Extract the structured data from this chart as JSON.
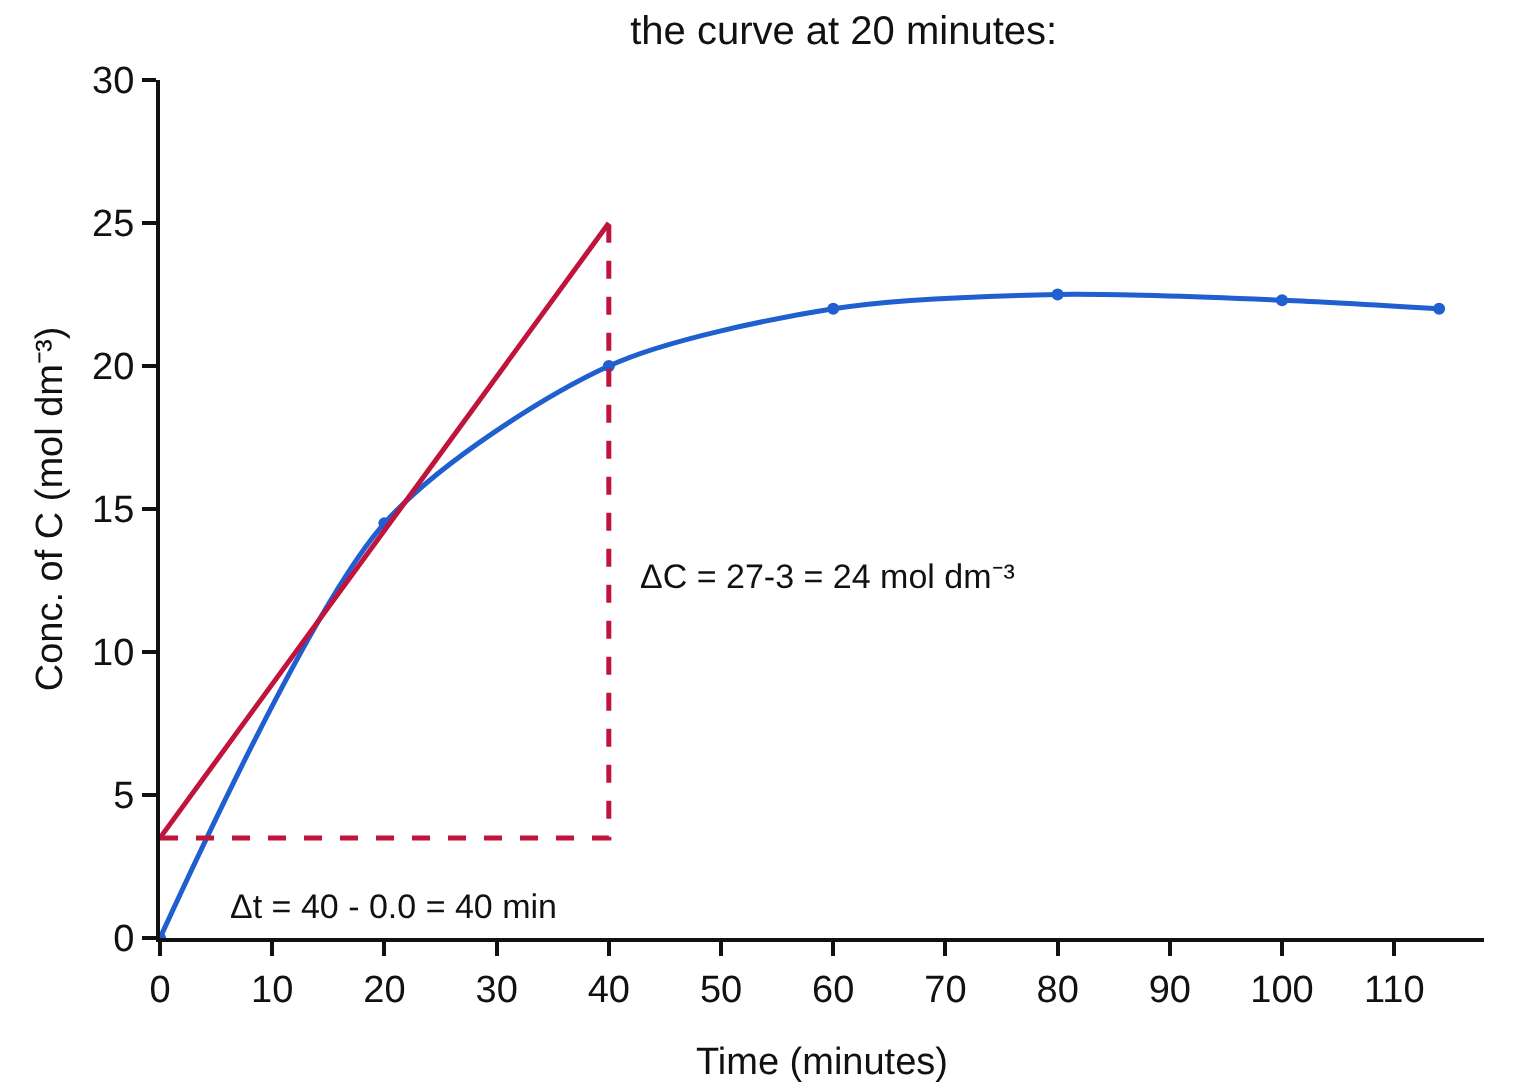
{
  "chart_data": {
    "type": "line",
    "title": "the curve at 20 minutes:",
    "xlabel": "Time (minutes)",
    "ylabel": "Conc. of C (mol dm⁻³)",
    "xlim": [
      0,
      118
    ],
    "xticks": [
      0,
      10,
      20,
      30,
      40,
      50,
      60,
      70,
      80,
      90,
      100,
      110
    ],
    "ylim": [
      0,
      30
    ],
    "yticks": [
      0,
      5,
      10,
      15,
      20,
      25,
      30
    ],
    "grid": false,
    "series": [
      {
        "x": [
          0,
          20,
          40,
          60,
          80,
          100,
          114
        ],
        "values": [
          0,
          14.5,
          20,
          22,
          22.5,
          22.3,
          22
        ],
        "color": "#1f5fd0",
        "marker": "circle",
        "line_style": "solid"
      },
      {
        "x": [
          0,
          40
        ],
        "values": [
          3.5,
          25
        ],
        "color": "#c0143c",
        "marker": "none",
        "line_style": "solid"
      },
      {
        "x": [
          0,
          40,
          40
        ],
        "values": [
          3.5,
          3.5,
          25
        ],
        "color": "#c0143c",
        "marker": "none",
        "line_style": "dashed"
      }
    ],
    "annotations": [
      "ΔC = 27-3 = 24 mol dm⁻³",
      "Δt = 40 - 0.0 = 40 min"
    ]
  }
}
